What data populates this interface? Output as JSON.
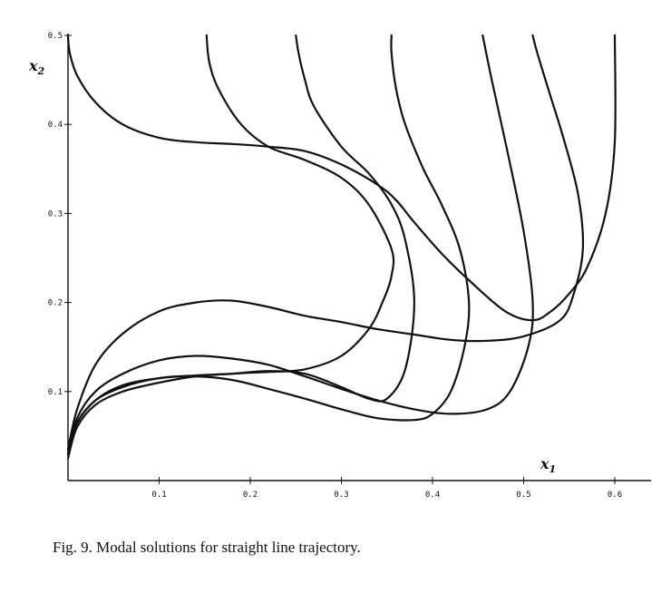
{
  "caption": "Fig. 9.   Modal solutions for straight line trajectory.",
  "chart_data": {
    "type": "line",
    "title": "",
    "xlabel": "x",
    "xlabel_sub": "1",
    "ylabel": "x",
    "ylabel_sub": "2",
    "xlim": [
      0,
      0.62
    ],
    "ylim": [
      0,
      0.5
    ],
    "x_ticks": [
      0.1,
      0.2,
      0.3,
      0.4,
      0.5,
      0.6
    ],
    "x_tick_labels": [
      "0.1",
      "0.2",
      "0.3",
      "0.4",
      "0.5",
      "0.6"
    ],
    "y_ticks": [
      0.1,
      0.2,
      0.3,
      0.4,
      0.5
    ],
    "y_tick_labels": [
      "0.1",
      "0.2",
      "0.3",
      "0.4",
      "0.5"
    ],
    "grid": false,
    "line_color": "#111111",
    "series": [
      {
        "x": [
          0.0,
          0.002,
          0.01,
          0.03,
          0.06,
          0.1,
          0.14,
          0.18,
          0.22,
          0.26,
          0.3,
          0.34,
          0.36,
          0.38,
          0.41,
          0.44,
          0.48,
          0.51,
          0.53,
          0.55,
          0.57,
          0.59,
          0.6,
          0.6
        ],
        "y": [
          0.5,
          0.48,
          0.455,
          0.425,
          0.4,
          0.385,
          0.38,
          0.378,
          0.375,
          0.37,
          0.355,
          0.332,
          0.315,
          0.29,
          0.255,
          0.225,
          0.19,
          0.18,
          0.19,
          0.21,
          0.24,
          0.3,
          0.38,
          0.5
        ]
      },
      {
        "x": [
          0.0,
          0.01,
          0.03,
          0.06,
          0.1,
          0.14,
          0.18,
          0.22,
          0.26,
          0.3,
          0.34,
          0.38,
          0.42,
          0.46,
          0.5,
          0.54,
          0.555,
          0.565,
          0.56,
          0.545,
          0.53,
          0.515,
          0.51
        ],
        "y": [
          0.035,
          0.08,
          0.13,
          0.165,
          0.19,
          0.2,
          0.202,
          0.195,
          0.185,
          0.178,
          0.17,
          0.164,
          0.158,
          0.157,
          0.162,
          0.18,
          0.21,
          0.26,
          0.32,
          0.38,
          0.43,
          0.48,
          0.5
        ]
      },
      {
        "x": [
          0.0,
          0.01,
          0.03,
          0.06,
          0.1,
          0.14,
          0.18,
          0.22,
          0.26,
          0.3,
          0.34,
          0.38,
          0.42,
          0.46,
          0.485,
          0.505,
          0.51,
          0.5,
          0.48,
          0.465,
          0.455
        ],
        "y": [
          0.03,
          0.07,
          0.1,
          0.12,
          0.135,
          0.14,
          0.137,
          0.13,
          0.117,
          0.103,
          0.09,
          0.08,
          0.075,
          0.08,
          0.1,
          0.15,
          0.2,
          0.28,
          0.38,
          0.45,
          0.5
        ]
      },
      {
        "x": [
          0.0,
          0.01,
          0.03,
          0.06,
          0.1,
          0.14,
          0.18,
          0.22,
          0.26,
          0.3,
          0.34,
          0.38,
          0.4,
          0.42,
          0.435,
          0.44,
          0.43,
          0.41,
          0.39,
          0.37,
          0.36,
          0.355,
          0.355
        ],
        "y": [
          0.035,
          0.065,
          0.09,
          0.107,
          0.115,
          0.117,
          0.113,
          0.103,
          0.092,
          0.08,
          0.07,
          0.068,
          0.075,
          0.1,
          0.15,
          0.2,
          0.26,
          0.31,
          0.35,
          0.4,
          0.44,
          0.48,
          0.5
        ]
      },
      {
        "x": [
          0.0,
          0.01,
          0.03,
          0.06,
          0.1,
          0.14,
          0.18,
          0.22,
          0.26,
          0.3,
          0.33,
          0.35,
          0.37,
          0.38,
          0.37,
          0.355,
          0.33,
          0.3,
          0.27,
          0.26,
          0.253,
          0.25
        ],
        "y": [
          0.03,
          0.065,
          0.09,
          0.105,
          0.115,
          0.118,
          0.12,
          0.123,
          0.12,
          0.105,
          0.092,
          0.092,
          0.125,
          0.2,
          0.27,
          0.31,
          0.345,
          0.375,
          0.42,
          0.45,
          0.48,
          0.5
        ]
      },
      {
        "x": [
          0.0,
          0.01,
          0.03,
          0.06,
          0.1,
          0.14,
          0.18,
          0.22,
          0.26,
          0.3,
          0.33,
          0.345,
          0.355,
          0.355,
          0.33,
          0.3,
          0.26,
          0.22,
          0.19,
          0.165,
          0.155,
          0.152
        ],
        "y": [
          0.025,
          0.06,
          0.085,
          0.1,
          0.11,
          0.117,
          0.12,
          0.122,
          0.125,
          0.14,
          0.17,
          0.2,
          0.23,
          0.26,
          0.31,
          0.34,
          0.36,
          0.375,
          0.4,
          0.44,
          0.47,
          0.5
        ]
      }
    ]
  }
}
